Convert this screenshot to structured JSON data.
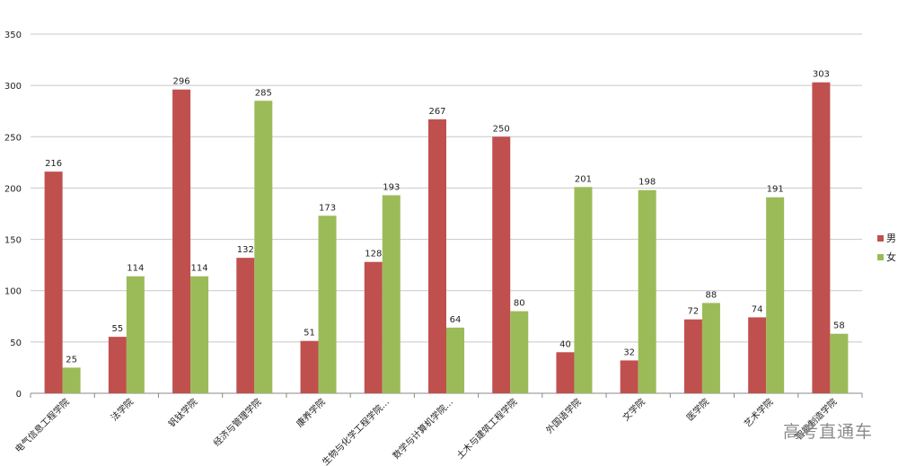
{
  "chart_data": {
    "type": "bar",
    "categories": [
      "电气信息工程学院",
      "法学院",
      "钒钛学院",
      "经济与管理学院",
      "康养学院",
      "生物与化学工程学院…",
      "数学与计算机学院…",
      "土木与建筑工程学院",
      "外国语学院",
      "文学院",
      "医学院",
      "艺术学院",
      "智能制造学院"
    ],
    "series": [
      {
        "name": "男",
        "color": "#c0504d",
        "values": [
          216,
          55,
          296,
          132,
          51,
          128,
          267,
          250,
          40,
          32,
          72,
          74,
          303
        ]
      },
      {
        "name": "女",
        "color": "#9bbb59",
        "values": [
          25,
          114,
          114,
          285,
          173,
          193,
          64,
          80,
          201,
          198,
          88,
          191,
          58
        ]
      }
    ],
    "yticks": [
      0,
      50,
      100,
      150,
      200,
      250,
      300,
      350
    ],
    "ylim": [
      0,
      350
    ],
    "grid": true,
    "legend_position": "right"
  },
  "watermark": "高考直通车"
}
